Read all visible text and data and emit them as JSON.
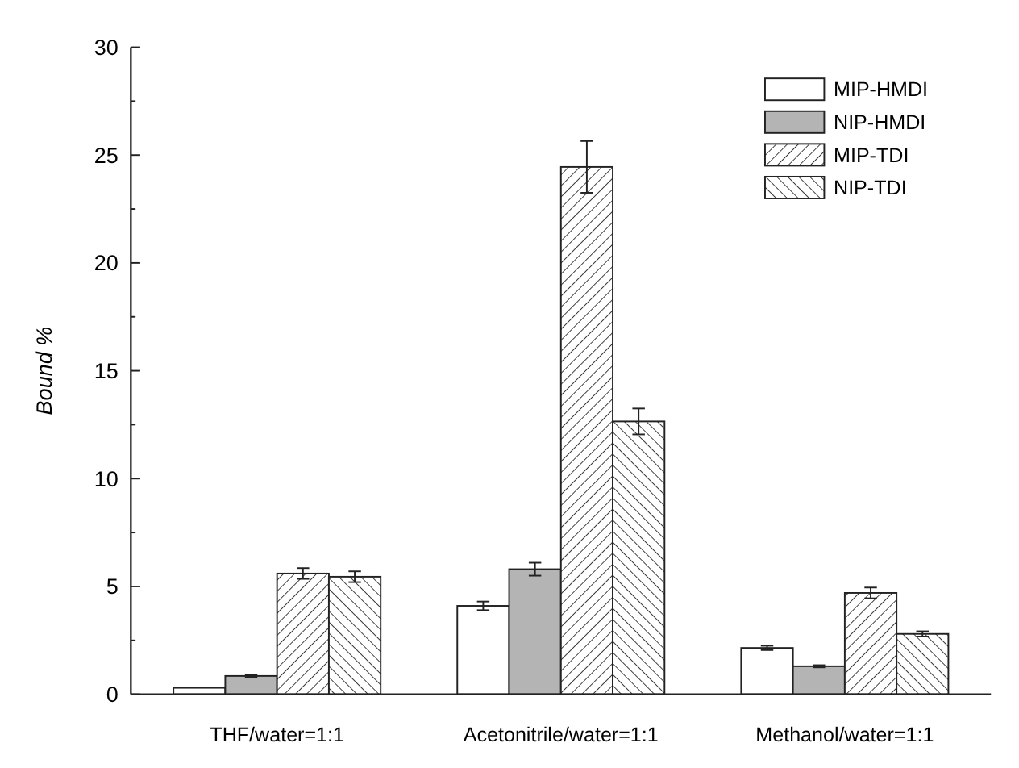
{
  "chart_data": {
    "type": "bar",
    "ylabel": "Bound %",
    "categories": [
      "THF/water=1:1",
      "Acetonitrile/water=1:1",
      "Methanol/water=1:1"
    ],
    "series": [
      {
        "name": "MIP-HMDI",
        "color": "#ffffff",
        "values": [
          0.3,
          4.1,
          2.15
        ],
        "errors": [
          null,
          0.2,
          0.1
        ]
      },
      {
        "name": "NIP-HMDI",
        "color": "#b4b4b4",
        "values": [
          0.85,
          5.8,
          1.3
        ],
        "errors": [
          0.05,
          0.3,
          0.05
        ]
      },
      {
        "name": "MIP-TDI",
        "color": "#222222",
        "values": [
          5.6,
          24.45,
          4.7
        ],
        "errors": [
          0.25,
          1.2,
          0.25
        ]
      },
      {
        "name": "NIP-TDI",
        "color": "#222222",
        "values": [
          5.45,
          12.65,
          2.8
        ],
        "errors": [
          0.25,
          0.6,
          0.12
        ]
      }
    ],
    "ylim": [
      0,
      30
    ],
    "yticks": [
      0,
      {
        "value": 2.5,
        "label": null
      },
      5,
      {
        "value": 7.5,
        "label": null
      },
      10,
      {
        "value": 12.5,
        "label": null
      },
      15,
      {
        "value": 17.5,
        "label": null
      },
      20,
      {
        "value": 22.5,
        "label": null
      },
      25,
      {
        "value": 27.5,
        "label": null
      },
      30
    ],
    "grid": false,
    "legend": "top right"
  }
}
